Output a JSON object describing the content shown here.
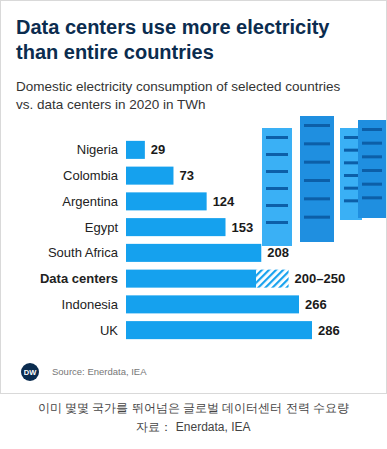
{
  "chart_data": {
    "type": "bar",
    "orientation": "horizontal",
    "title": "Data centers use more electricity than entire countries",
    "subtitle": "Domestic electricity consumption of selected countries vs. data centers in 2020 in TWh",
    "categories": [
      "Nigeria",
      "Colombia",
      "Argentina",
      "Egypt",
      "South Africa",
      "Data centers",
      "Indonesia",
      "UK"
    ],
    "values": [
      29,
      73,
      124,
      153,
      208,
      200,
      266,
      286
    ],
    "highs": [
      null,
      null,
      null,
      null,
      null,
      250,
      null,
      null
    ],
    "value_labels": [
      "29",
      "73",
      "124",
      "153",
      "208",
      "200–250",
      "266",
      "286"
    ],
    "color": "#15a1ee",
    "data_labels": true,
    "tick_labels": false,
    "grid": false,
    "logo": "DW",
    "source": "Source: Enerdata, IEA",
    "caption": [
      "이미 몇몇 국가를 뛰어넘은 글로벌 데이터센터 전력 수요량",
      "자료： Enerdata, IEA"
    ]
  }
}
